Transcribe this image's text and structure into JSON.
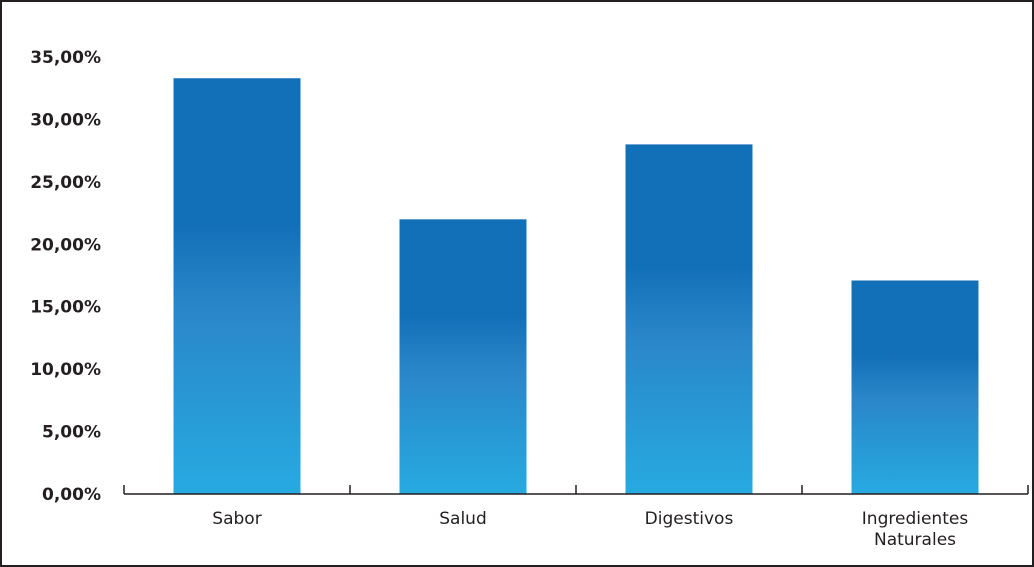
{
  "chart_data": {
    "type": "bar",
    "categories": [
      "Sabor",
      "Salud",
      "Digestivos",
      "Ingredientes Naturales"
    ],
    "category_lines": [
      [
        "Sabor"
      ],
      [
        "Salud"
      ],
      [
        "Digestivos"
      ],
      [
        "Ingredientes",
        "Naturales"
      ]
    ],
    "values": [
      33.3,
      22.0,
      28.0,
      17.1
    ],
    "value_unit": "%",
    "ylim": [
      0,
      35
    ],
    "yticks": [
      0,
      5,
      10,
      15,
      20,
      25,
      30,
      35
    ],
    "ytick_labels": [
      "0,00%",
      "5,00%",
      "10,00%",
      "15,00%",
      "20,00%",
      "25,00%",
      "30,00%",
      "35,00%"
    ],
    "title": "",
    "xlabel": "",
    "ylabel": "",
    "grid": false,
    "legend": "none",
    "colors": {
      "bar_top": "#1270b8",
      "bar_bottom": "#27aae1",
      "axis": "#231f20",
      "text": "#231f20"
    }
  }
}
